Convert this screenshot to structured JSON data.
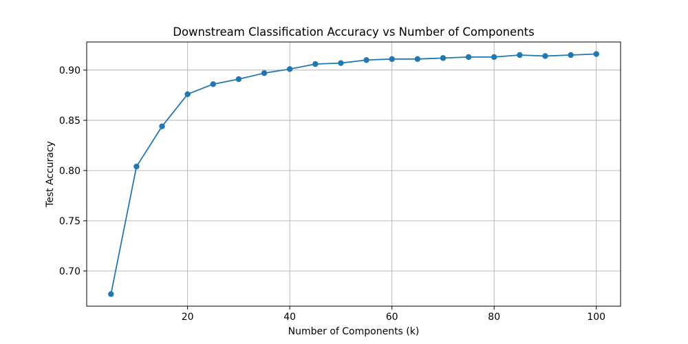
{
  "chart_data": {
    "type": "line",
    "title": "Downstream Classification Accuracy vs Number of Components",
    "xlabel": "Number of Components (k)",
    "ylabel": "Test Accuracy",
    "series_name": "Test Accuracy",
    "x": [
      5,
      10,
      15,
      20,
      25,
      30,
      35,
      40,
      45,
      50,
      55,
      60,
      65,
      70,
      75,
      80,
      85,
      90,
      95,
      100
    ],
    "values": [
      0.677,
      0.804,
      0.844,
      0.876,
      0.886,
      0.891,
      0.897,
      0.901,
      0.906,
      0.907,
      0.91,
      0.911,
      0.911,
      0.912,
      0.913,
      0.913,
      0.915,
      0.914,
      0.915,
      0.916
    ],
    "xlim": [
      0.25,
      104.75
    ],
    "ylim": [
      0.665,
      0.928
    ],
    "xticks": [
      20,
      40,
      60,
      80,
      100
    ],
    "xtick_labels": [
      "20",
      "40",
      "60",
      "80",
      "100"
    ],
    "yticks": [
      0.7,
      0.75,
      0.8,
      0.85,
      0.9
    ],
    "ytick_labels": [
      "0.70",
      "0.75",
      "0.80",
      "0.85",
      "0.90"
    ],
    "grid": true,
    "legend": "none",
    "line_color": "#1f77b4",
    "marker_color": "#1f77b4",
    "grid_color": "#b0b0b0",
    "frame_color": "#000000",
    "marker": "o"
  }
}
